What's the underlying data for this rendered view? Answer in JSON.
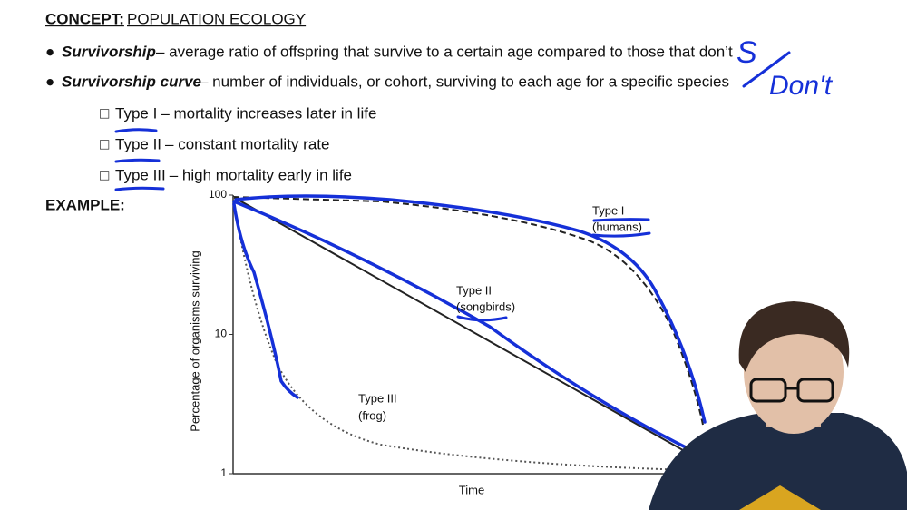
{
  "header": {
    "label": "CONCEPT:",
    "title": "POPULATION ECOLOGY"
  },
  "bullets": [
    {
      "term": "Survivorship",
      "text": "– average ratio of offspring that survive to a certain age compared to those that don’t"
    },
    {
      "term": "Survivorship curve",
      "text": "– number of individuals, or cohort, surviving to each age for a specific species"
    }
  ],
  "subitems": [
    {
      "term": "Type I",
      "text": "– mortality increases later in life"
    },
    {
      "term": "Type II",
      "text": "– constant mortality rate"
    },
    {
      "term": "Type III",
      "text": "– high mortality early in life"
    }
  ],
  "example_label": "EXAMPLE:",
  "figure": {
    "y_label": "Percentage of organisms surviving",
    "x_label": "Time",
    "log_scale": true,
    "ylim": [
      1,
      100
    ],
    "yticks": [
      100,
      10,
      1
    ],
    "curve_labels": [
      [
        "Type I",
        "(humans)"
      ],
      [
        "Type II",
        "(songbirds)"
      ],
      [
        "Type III",
        "(frog)"
      ]
    ]
  },
  "handwriting": {
    "top": "S",
    "bottom": "Don't"
  }
}
